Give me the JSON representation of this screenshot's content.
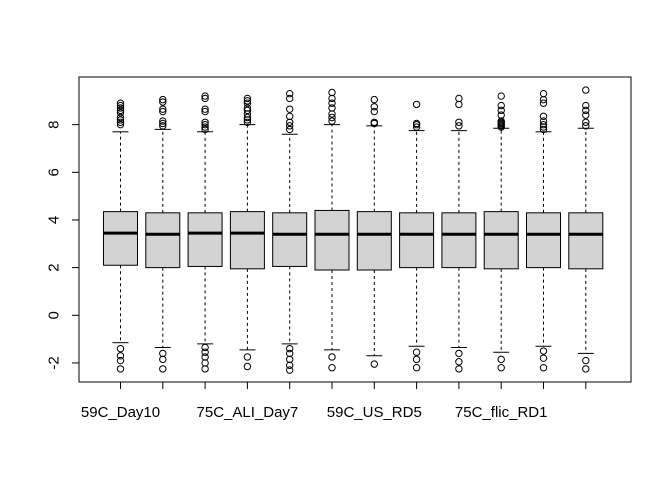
{
  "chart_data": {
    "type": "boxplot",
    "title": "",
    "xlabel": "",
    "ylabel": "",
    "ylim": [
      -2.8,
      10.0
    ],
    "yticks": [
      -2,
      0,
      2,
      4,
      6,
      8
    ],
    "ytick_labels": [
      "-2",
      "0",
      "2",
      "4",
      "6",
      "8"
    ],
    "categories": [
      "59C_Day10",
      "",
      "",
      "75C_ALI_Day7",
      "",
      "",
      "59C_US_RD5",
      "",
      "",
      "75C_flic_RD1",
      "",
      ""
    ],
    "box_fill": "#d3d3d3",
    "boxes": [
      {
        "q1": 2.1,
        "median": 3.45,
        "q3": 4.35,
        "lower_whisker": -1.15,
        "upper_whisker": 7.7,
        "outliers_high": [
          8.0,
          8.1,
          8.2,
          8.3,
          8.5,
          8.6,
          8.7,
          8.8,
          8.9
        ],
        "outliers_low": [
          -1.4,
          -1.7,
          -1.9,
          -2.25
        ]
      },
      {
        "q1": 2.0,
        "median": 3.4,
        "q3": 4.3,
        "lower_whisker": -1.35,
        "upper_whisker": 7.8,
        "outliers_high": [
          7.95,
          8.05,
          8.15,
          8.55,
          8.65,
          8.95,
          9.05
        ],
        "outliers_low": [
          -1.6,
          -1.85,
          -2.25
        ]
      },
      {
        "q1": 2.05,
        "median": 3.45,
        "q3": 4.3,
        "lower_whisker": -1.2,
        "upper_whisker": 7.7,
        "outliers_high": [
          7.8,
          7.9,
          8.0,
          8.1,
          8.55,
          8.65,
          9.1,
          9.2
        ],
        "outliers_low": [
          -1.35,
          -1.55,
          -1.75,
          -2.0,
          -2.25
        ]
      },
      {
        "q1": 1.95,
        "median": 3.45,
        "q3": 4.35,
        "lower_whisker": -1.45,
        "upper_whisker": 8.0,
        "outliers_high": [
          8.1,
          8.2,
          8.3,
          8.45,
          8.6,
          8.7,
          8.9,
          9.0,
          9.1
        ],
        "outliers_low": [
          -1.75,
          -2.15
        ]
      },
      {
        "q1": 2.05,
        "median": 3.4,
        "q3": 4.3,
        "lower_whisker": -1.2,
        "upper_whisker": 7.6,
        "outliers_high": [
          7.8,
          7.95,
          8.1,
          8.35,
          8.65,
          9.1,
          9.3
        ],
        "outliers_low": [
          -1.4,
          -1.6,
          -1.85,
          -2.1,
          -2.3
        ]
      },
      {
        "q1": 1.9,
        "median": 3.4,
        "q3": 4.4,
        "lower_whisker": -1.45,
        "upper_whisker": 8.0,
        "outliers_high": [
          8.15,
          8.3,
          8.45,
          8.7,
          8.9,
          9.1,
          9.35
        ],
        "outliers_low": [
          -1.75,
          -2.2
        ]
      },
      {
        "q1": 1.9,
        "median": 3.4,
        "q3": 4.35,
        "lower_whisker": -1.7,
        "upper_whisker": 7.95,
        "outliers_high": [
          8.05,
          8.1,
          8.55,
          8.75,
          9.05
        ],
        "outliers_low": [
          -2.05
        ]
      },
      {
        "q1": 2.0,
        "median": 3.4,
        "q3": 4.3,
        "lower_whisker": -1.3,
        "upper_whisker": 7.75,
        "outliers_high": [
          7.9,
          8.0,
          8.05,
          8.85
        ],
        "outliers_low": [
          -1.55,
          -1.85,
          -2.2
        ]
      },
      {
        "q1": 2.0,
        "median": 3.4,
        "q3": 4.3,
        "lower_whisker": -1.35,
        "upper_whisker": 7.75,
        "outliers_high": [
          7.95,
          8.1,
          8.85,
          9.1
        ],
        "outliers_low": [
          -1.6,
          -1.95,
          -2.25
        ]
      },
      {
        "q1": 1.95,
        "median": 3.4,
        "q3": 4.35,
        "lower_whisker": -1.55,
        "upper_whisker": 7.85,
        "outliers_high": [
          7.9,
          7.95,
          8.0,
          8.05,
          8.1,
          8.15,
          8.4,
          8.6,
          8.8,
          9.2
        ],
        "outliers_low": [
          -1.85,
          -2.2
        ]
      },
      {
        "q1": 2.0,
        "median": 3.4,
        "q3": 4.3,
        "lower_whisker": -1.3,
        "upper_whisker": 7.7,
        "outliers_high": [
          7.8,
          7.9,
          8.0,
          8.15,
          8.35,
          8.9,
          9.05,
          9.3
        ],
        "outliers_low": [
          -1.5,
          -1.8,
          -2.2
        ]
      },
      {
        "q1": 1.95,
        "median": 3.4,
        "q3": 4.3,
        "lower_whisker": -1.6,
        "upper_whisker": 7.85,
        "outliers_high": [
          7.95,
          8.1,
          8.4,
          8.6,
          8.8,
          9.45
        ],
        "outliers_low": [
          -1.9,
          -2.25
        ]
      }
    ]
  }
}
